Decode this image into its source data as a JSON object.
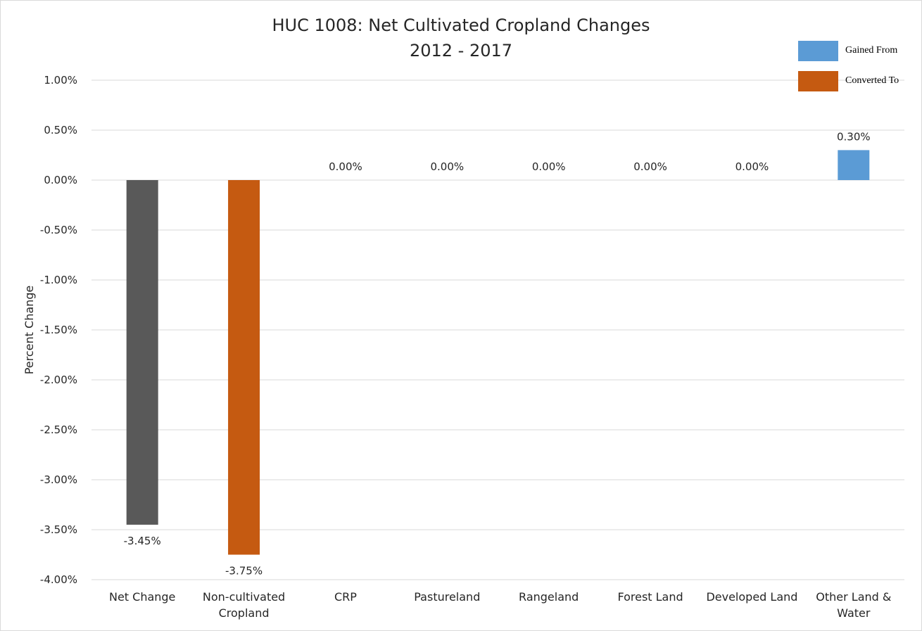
{
  "chart_data": {
    "type": "bar",
    "title": "HUC 1008: Net Cultivated Cropland Changes",
    "subtitle": "2012 - 2017",
    "xlabel": "",
    "ylabel": "Percent Change",
    "ylim": [
      -4.0,
      1.0
    ],
    "yticks": [
      "1.00%",
      "0.50%",
      "0.00%",
      "-0.50%",
      "-1.00%",
      "-1.50%",
      "-2.00%",
      "-2.50%",
      "-3.00%",
      "-3.50%",
      "-4.00%"
    ],
    "categories": [
      [
        "Net Change"
      ],
      [
        "Non-cultivated",
        "Cropland"
      ],
      [
        "CRP"
      ],
      [
        "Pastureland"
      ],
      [
        "Rangeland"
      ],
      [
        "Forest Land"
      ],
      [
        "Developed Land"
      ],
      [
        "Other Land &",
        "Water"
      ]
    ],
    "values": [
      -3.45,
      -3.75,
      0.0,
      0.0,
      0.0,
      0.0,
      0.0,
      0.3
    ],
    "data_labels": [
      "-3.45%",
      "-3.75%",
      "0.00%",
      "0.00%",
      "0.00%",
      "0.00%",
      "0.00%",
      "0.30%"
    ],
    "bar_colors": [
      "#595959",
      "#c55a11",
      "#5b9bd5",
      "#5b9bd5",
      "#5b9bd5",
      "#5b9bd5",
      "#5b9bd5",
      "#5b9bd5"
    ],
    "grid": true,
    "legend": {
      "position": "top-right",
      "items": [
        {
          "label": "Gained From",
          "color": "#5b9bd5"
        },
        {
          "label": "Converted To",
          "color": "#c55a11"
        }
      ]
    }
  }
}
